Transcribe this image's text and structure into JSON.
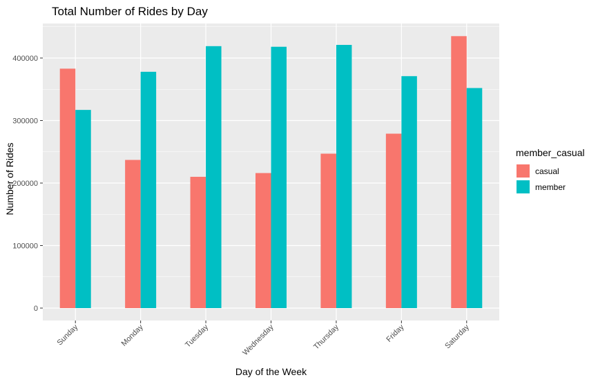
{
  "chart_data": {
    "type": "bar",
    "title": "Total Number of Rides by Day",
    "xlabel": "Day of the Week",
    "ylabel": "Number of Rides",
    "categories": [
      "Sunday",
      "Monday",
      "Tuesday",
      "Wednesday",
      "Thursday",
      "Friday",
      "Saturday"
    ],
    "series": [
      {
        "name": "casual",
        "color": "#F8766D",
        "values": [
          383000,
          237000,
          210000,
          216000,
          247000,
          279000,
          435000
        ]
      },
      {
        "name": "member",
        "color": "#00BFC4",
        "values": [
          317000,
          378000,
          419000,
          418000,
          421000,
          371000,
          352000
        ]
      }
    ],
    "ylim": [
      0,
      450000
    ],
    "yticks": [
      0,
      100000,
      200000,
      300000,
      400000
    ],
    "ytick_labels": [
      "0",
      "100000",
      "200000",
      "300000",
      "400000"
    ],
    "grid": true,
    "legend": {
      "title": "member_casual",
      "position": "right"
    },
    "panel_background": "#EBEBEB",
    "grid_color": "#FFFFFF"
  }
}
